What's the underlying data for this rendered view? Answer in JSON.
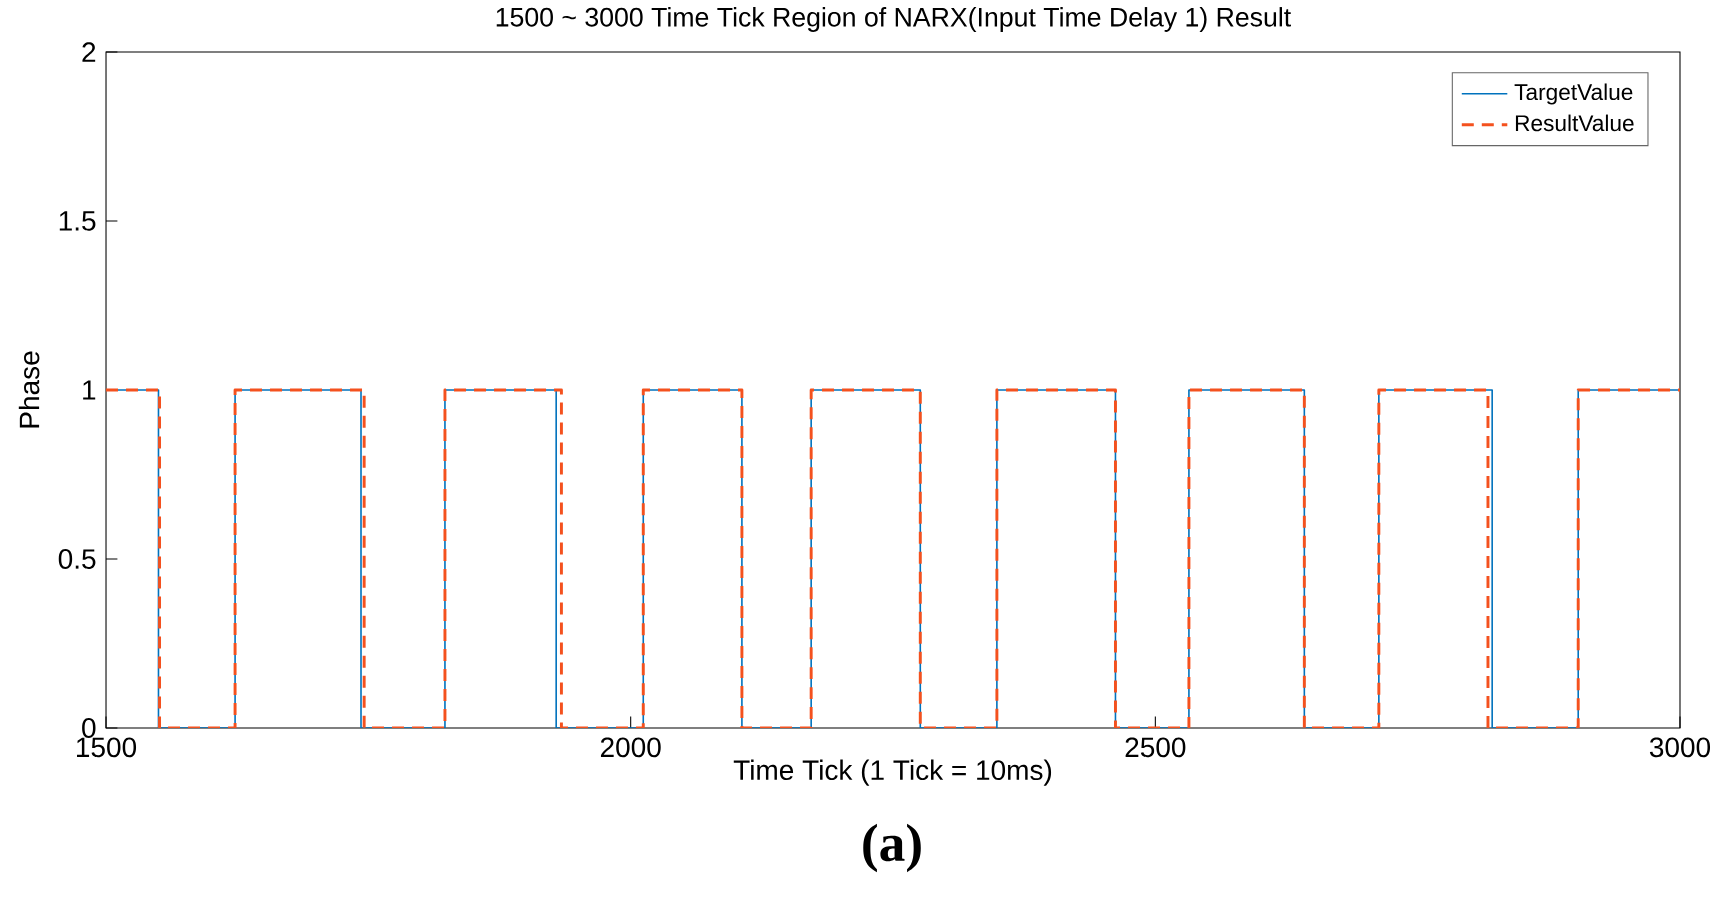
{
  "chart_data": {
    "type": "step",
    "title": "1500 ~ 3000 Time Tick Region of NARX(Input Time Delay 1) Result",
    "xlabel": "Time Tick (1 Tick = 10ms)",
    "ylabel": "Phase",
    "annotations": [
      "**(a)**"
    ],
    "xlim": [
      1500,
      3000
    ],
    "xticks": [
      1500,
      2000,
      2500,
      3000
    ],
    "ylim": [
      0,
      2
    ],
    "yticks": [
      0,
      0.5,
      1,
      1.5,
      2
    ],
    "grid": false,
    "legend": "top right",
    "series": [
      {
        "name": "TargetValue",
        "color": "#0072bd",
        "line_style": "solid",
        "x": [
          1500,
          1550,
          1623,
          1743,
          1823,
          1929,
          2012,
          2106,
          2172,
          2276,
          2349,
          2462,
          2532,
          2642,
          2713,
          2821,
          2903,
          3000
        ],
        "values": [
          1,
          0,
          1,
          0,
          1,
          0,
          1,
          0,
          1,
          0,
          1,
          0,
          1,
          0,
          1,
          0,
          1,
          1
        ]
      },
      {
        "name": "ResultValue",
        "color": "#f4511e",
        "line_style": "dashed",
        "x": [
          1500,
          1551,
          1623,
          1746,
          1823,
          1934,
          2012,
          2106,
          2172,
          2276,
          2349,
          2462,
          2532,
          2642,
          2713,
          2817,
          2903,
          3000
        ],
        "values": [
          1,
          0,
          1,
          0,
          1,
          0,
          1,
          0,
          1,
          0,
          1,
          0,
          1,
          0,
          1,
          0,
          1,
          1
        ]
      }
    ]
  }
}
